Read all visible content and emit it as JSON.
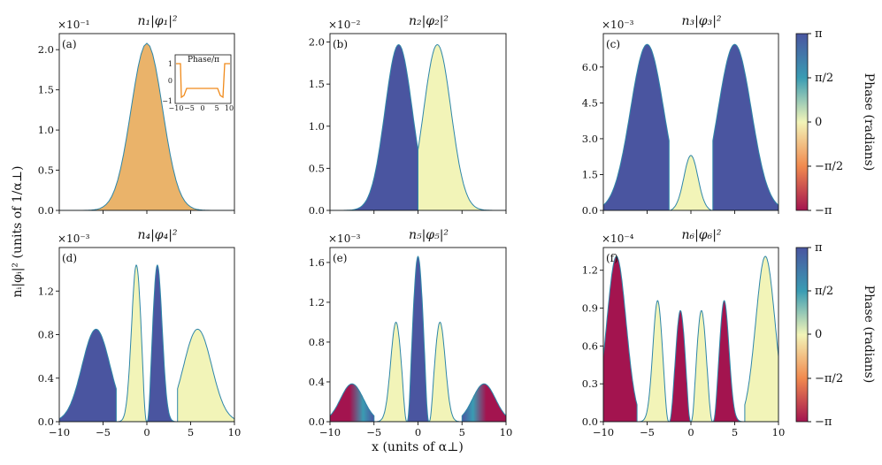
{
  "figure": {
    "ylabel": "nᵢ|φᵢ|² (units of 1/α⊥)",
    "xlabel": "x (units of α⊥)",
    "colorbar": {
      "label": "Phase (radians)",
      "ticks": [
        "π",
        "π/2",
        "0",
        "−π/2",
        "−π"
      ]
    },
    "colors": {
      "phase_pos_pi": "#4a55a0",
      "phase_mid_pos": "#3a9cb3",
      "phase_zero": "#f2f4b8",
      "phase_mid_neg": "#f18a4f",
      "phase_neg_pi": "#a3144f",
      "panel1_fill": "#eab36a",
      "curve_line": "#2e86a8",
      "inset_line": "#f08a1a"
    },
    "inset": {
      "title": "Phase/π",
      "yticks": [
        "1",
        "0",
        "−1"
      ],
      "xticks": [
        "−10",
        "−5",
        "0",
        "5",
        "10"
      ]
    }
  },
  "chart_data": [
    {
      "type": "area",
      "letter": "(a)",
      "title": "n₁|φ₁|²",
      "multiplier": "×10⁻¹",
      "xlim": [
        -10,
        10
      ],
      "ylim": [
        0,
        2.2
      ],
      "yticks": [
        0.0,
        0.5,
        1.0,
        1.5,
        2.0
      ],
      "ytick_labels": [
        "0.0",
        "0.5",
        "1.0",
        "1.5",
        "2.0"
      ],
      "xticks": [
        -10,
        -5,
        0,
        5,
        10
      ],
      "xtick_labels": [
        "",
        "",
        "",
        "",
        ""
      ],
      "peaks": [
        {
          "x": 0,
          "height": 2.08,
          "width": 1.8,
          "phase": "orange"
        }
      ],
      "side_bumps": 0.03
    },
    {
      "type": "area",
      "letter": "(b)",
      "title": "n₂|φ₂|²",
      "multiplier": "×10⁻²",
      "xlim": [
        -10,
        10
      ],
      "ylim": [
        0,
        2.1
      ],
      "yticks": [
        0.0,
        0.5,
        1.0,
        1.5,
        2.0
      ],
      "ytick_labels": [
        "0.0",
        "0.5",
        "1.0",
        "1.5",
        "2.0"
      ],
      "xticks": [
        -10,
        -5,
        0,
        5,
        10
      ],
      "xtick_labels": [
        "",
        "",
        "",
        "",
        ""
      ],
      "peaks": [
        {
          "x": -2.2,
          "height": 1.97,
          "phase": "pi"
        },
        {
          "x": 2.2,
          "height": 1.97,
          "phase": "zero"
        }
      ]
    },
    {
      "type": "area",
      "letter": "(c)",
      "title": "n₃|φ₃|²",
      "multiplier": "×10⁻³",
      "xlim": [
        -10,
        10
      ],
      "ylim": [
        0,
        7.4
      ],
      "yticks": [
        0.0,
        1.5,
        3.0,
        4.5,
        6.0
      ],
      "ytick_labels": [
        "0.0",
        "1.5",
        "3.0",
        "4.5",
        "6.0"
      ],
      "xticks": [
        -10,
        -5,
        0,
        5,
        10
      ],
      "xtick_labels": [
        "",
        "",
        "",
        "",
        ""
      ],
      "peaks": [
        {
          "x": -5.0,
          "height": 6.95,
          "phase": "pi"
        },
        {
          "x": 0.0,
          "height": 2.3,
          "phase": "zero"
        },
        {
          "x": 5.0,
          "height": 6.95,
          "phase": "pi"
        }
      ]
    },
    {
      "type": "area",
      "letter": "(d)",
      "title": "n₄|φ₄|²",
      "multiplier": "×10⁻³",
      "xlim": [
        -10,
        10
      ],
      "ylim": [
        0,
        1.6
      ],
      "yticks": [
        0.0,
        0.4,
        0.8,
        1.2
      ],
      "ytick_labels": [
        "0.0",
        "0.4",
        "0.8",
        "1.2"
      ],
      "xticks": [
        -10,
        -5,
        0,
        5,
        10
      ],
      "xtick_labels": [
        "−10",
        "−5",
        "0",
        "5",
        "10"
      ],
      "peaks": [
        {
          "x": -5.8,
          "height": 0.85,
          "phase": "pi"
        },
        {
          "x": -1.2,
          "height": 1.44,
          "phase": "zero"
        },
        {
          "x": 1.2,
          "height": 1.44,
          "phase": "pi"
        },
        {
          "x": 5.8,
          "height": 0.85,
          "phase": "zero"
        }
      ]
    },
    {
      "type": "area",
      "letter": "(e)",
      "title": "n₅|φ₅|²",
      "multiplier": "×10⁻³",
      "xlim": [
        -10,
        10
      ],
      "ylim": [
        0,
        1.75
      ],
      "yticks": [
        0.0,
        0.4,
        0.8,
        1.2,
        1.6
      ],
      "ytick_labels": [
        "0.0",
        "0.4",
        "0.8",
        "1.2",
        "1.6"
      ],
      "xticks": [
        -10,
        -5,
        0,
        5,
        10
      ],
      "xtick_labels": [
        "−10",
        "−5",
        "0",
        "5",
        "10"
      ],
      "peaks": [
        {
          "x": -7.5,
          "height": 0.38,
          "phase": "neg_to_pi"
        },
        {
          "x": -2.5,
          "height": 1.0,
          "phase": "zero"
        },
        {
          "x": 0.0,
          "height": 1.66,
          "phase": "pi"
        },
        {
          "x": 2.5,
          "height": 1.0,
          "phase": "zero"
        },
        {
          "x": 7.5,
          "height": 0.38,
          "phase": "pi_to_neg"
        }
      ]
    },
    {
      "type": "area",
      "letter": "(f)",
      "title": "n₆|φ₆|²",
      "multiplier": "×10⁻⁴",
      "xlim": [
        -10,
        10
      ],
      "ylim": [
        0,
        1.38
      ],
      "yticks": [
        0.0,
        0.3,
        0.6,
        0.9,
        1.2
      ],
      "ytick_labels": [
        "0.0",
        "0.3",
        "0.6",
        "0.9",
        "1.2"
      ],
      "xticks": [
        -10,
        -5,
        0,
        5,
        10
      ],
      "xtick_labels": [
        "−10",
        "−5",
        "0",
        "5",
        "10"
      ],
      "peaks": [
        {
          "x": -8.5,
          "height": 1.31,
          "phase": "neg_pi"
        },
        {
          "x": -3.8,
          "height": 0.96,
          "phase": "zero"
        },
        {
          "x": -1.2,
          "height": 0.88,
          "phase": "neg_pi"
        },
        {
          "x": 1.2,
          "height": 0.88,
          "phase": "zero"
        },
        {
          "x": 3.8,
          "height": 0.96,
          "phase": "neg_pi"
        },
        {
          "x": 8.5,
          "height": 1.31,
          "phase": "zero"
        }
      ]
    }
  ]
}
